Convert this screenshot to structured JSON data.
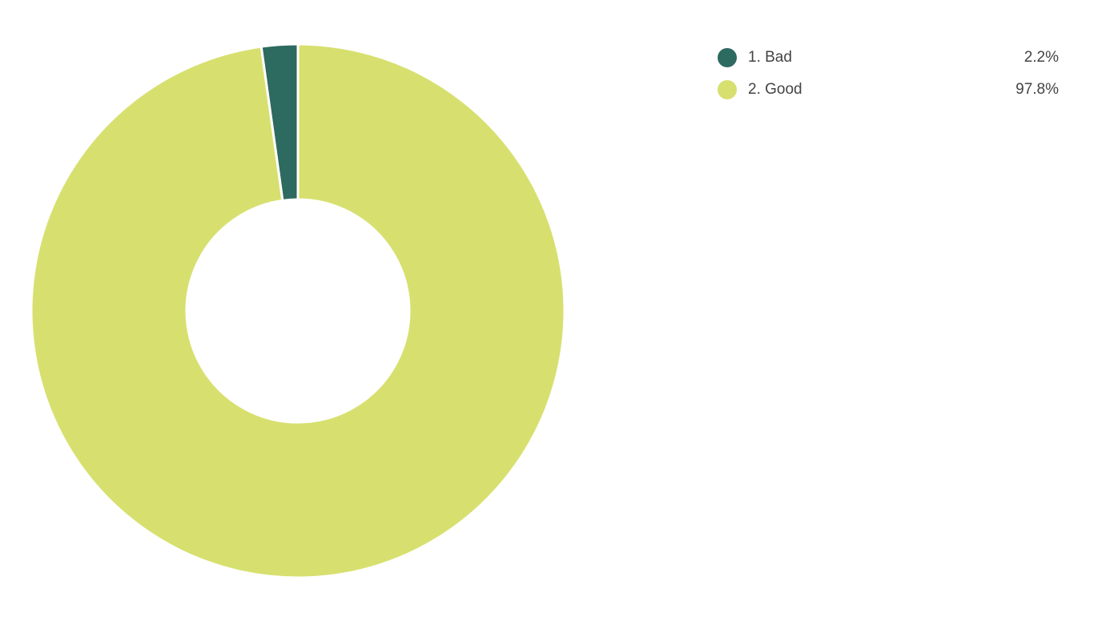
{
  "chart_data": {
    "type": "pie",
    "donut": true,
    "categories": [
      "1. Bad",
      "2. Good"
    ],
    "values": [
      2.2,
      97.8
    ],
    "value_labels": [
      "2.2%",
      "97.8%"
    ],
    "colors": [
      "#2d6a5f",
      "#d7e06f"
    ]
  }
}
